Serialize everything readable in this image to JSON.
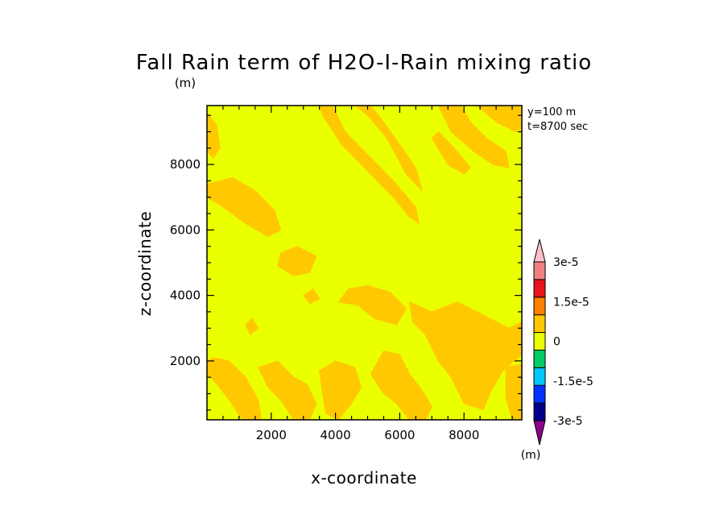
{
  "chart_data": {
    "type": "heatmap",
    "subtype": "filled-contour",
    "title": "Fall Rain term of H2O-I-Rain mixing ratio",
    "title_unit": "(m)",
    "xlabel": "x-coordinate",
    "ylabel": "z-coordinate",
    "xlim": [
      0,
      9800
    ],
    "ylim": [
      200,
      9800
    ],
    "x_ticks": [
      2000,
      4000,
      6000,
      8000
    ],
    "y_ticks": [
      2000,
      4000,
      6000,
      8000
    ],
    "x_minor_step": 500,
    "y_minor_step": 500,
    "annotations": [
      "y=100 m",
      "t=8700 sec"
    ],
    "background_level": 0,
    "background_color": "#eaff00",
    "patch_color": "#ffc800",
    "patch_level_range": [
      0,
      7.5e-06
    ],
    "patches": [
      [
        [
          0,
          9600
        ],
        [
          300,
          9200
        ],
        [
          400,
          8500
        ],
        [
          200,
          8200
        ],
        [
          0,
          8400
        ]
      ],
      [
        [
          0,
          7400
        ],
        [
          800,
          7600
        ],
        [
          1500,
          7200
        ],
        [
          2100,
          6600
        ],
        [
          2300,
          6000
        ],
        [
          1900,
          5800
        ],
        [
          1200,
          6200
        ],
        [
          500,
          6700
        ],
        [
          0,
          7000
        ]
      ],
      [
        [
          3500,
          9800
        ],
        [
          3600,
          9500
        ],
        [
          4200,
          8600
        ],
        [
          5000,
          7800
        ],
        [
          5800,
          7000
        ],
        [
          6300,
          6400
        ],
        [
          6600,
          6200
        ],
        [
          6500,
          6700
        ],
        [
          5800,
          7500
        ],
        [
          5000,
          8300
        ],
        [
          4300,
          9000
        ],
        [
          3900,
          9800
        ]
      ],
      [
        [
          4600,
          9800
        ],
        [
          5000,
          9500
        ],
        [
          5600,
          8800
        ],
        [
          6200,
          7700
        ],
        [
          6700,
          7200
        ],
        [
          6500,
          7900
        ],
        [
          6000,
          8600
        ],
        [
          5500,
          9300
        ],
        [
          5100,
          9800
        ]
      ],
      [
        [
          7200,
          9800
        ],
        [
          7600,
          9000
        ],
        [
          8300,
          8400
        ],
        [
          8900,
          8000
        ],
        [
          9400,
          7900
        ],
        [
          9300,
          8400
        ],
        [
          8700,
          8800
        ],
        [
          8200,
          9300
        ],
        [
          7900,
          9800
        ]
      ],
      [
        [
          8400,
          9800
        ],
        [
          9000,
          9300
        ],
        [
          9600,
          9000
        ],
        [
          9800,
          9100
        ],
        [
          9800,
          9800
        ]
      ],
      [
        [
          7000,
          8800
        ],
        [
          7500,
          8000
        ],
        [
          8000,
          7700
        ],
        [
          8200,
          7900
        ],
        [
          7700,
          8500
        ],
        [
          7200,
          9000
        ]
      ],
      [
        [
          2300,
          5300
        ],
        [
          2800,
          5500
        ],
        [
          3400,
          5200
        ],
        [
          3200,
          4700
        ],
        [
          2700,
          4600
        ],
        [
          2200,
          4900
        ]
      ],
      [
        [
          4100,
          3800
        ],
        [
          4700,
          3700
        ],
        [
          5200,
          3300
        ],
        [
          5900,
          3100
        ],
        [
          6200,
          3600
        ],
        [
          5700,
          4100
        ],
        [
          5000,
          4300
        ],
        [
          4400,
          4200
        ]
      ],
      [
        [
          6300,
          3800
        ],
        [
          7000,
          3500
        ],
        [
          7800,
          3800
        ],
        [
          8600,
          3400
        ],
        [
          9400,
          3000
        ],
        [
          9800,
          3200
        ],
        [
          9800,
          2200
        ],
        [
          9200,
          1700
        ],
        [
          8800,
          1000
        ],
        [
          8600,
          500
        ],
        [
          8000,
          700
        ],
        [
          7600,
          1500
        ],
        [
          7200,
          2000
        ],
        [
          6800,
          2800
        ],
        [
          6400,
          3200
        ]
      ],
      [
        [
          5100,
          1600
        ],
        [
          5500,
          2300
        ],
        [
          6000,
          2200
        ],
        [
          6300,
          1600
        ],
        [
          6700,
          1100
        ],
        [
          7000,
          600
        ],
        [
          6800,
          200
        ],
        [
          6300,
          200
        ],
        [
          5900,
          700
        ],
        [
          5500,
          1000
        ]
      ],
      [
        [
          200,
          2100
        ],
        [
          700,
          2000
        ],
        [
          1200,
          1500
        ],
        [
          1600,
          800
        ],
        [
          1700,
          200
        ],
        [
          1100,
          200
        ],
        [
          700,
          800
        ],
        [
          300,
          1300
        ],
        [
          0,
          1600
        ],
        [
          0,
          2000
        ]
      ],
      [
        [
          1600,
          1800
        ],
        [
          2200,
          2000
        ],
        [
          2700,
          1500
        ],
        [
          3100,
          1300
        ],
        [
          3400,
          700
        ],
        [
          3200,
          200
        ],
        [
          2700,
          200
        ],
        [
          2300,
          800
        ],
        [
          1900,
          1200
        ]
      ],
      [
        [
          3500,
          1700
        ],
        [
          4000,
          2000
        ],
        [
          4600,
          1800
        ],
        [
          4800,
          1200
        ],
        [
          4500,
          700
        ],
        [
          4100,
          200
        ],
        [
          3700,
          400
        ],
        [
          3600,
          1000
        ]
      ],
      [
        [
          9300,
          1800
        ],
        [
          9800,
          1900
        ],
        [
          9800,
          200
        ],
        [
          9500,
          200
        ],
        [
          9300,
          900
        ]
      ],
      [
        [
          1200,
          3100
        ],
        [
          1400,
          3300
        ],
        [
          1600,
          3000
        ],
        [
          1350,
          2800
        ]
      ],
      [
        [
          3000,
          4000
        ],
        [
          3300,
          4200
        ],
        [
          3500,
          3900
        ],
        [
          3200,
          3750
        ]
      ]
    ],
    "colorbar": {
      "levels": [
        -3e-05,
        -2.25e-05,
        -1.5e-05,
        -7.5e-06,
        0,
        7.5e-06,
        1.5e-05,
        2.25e-05,
        3e-05
      ],
      "tick_labels": [
        "3e-5",
        "1.5e-5",
        "0",
        "-1.5e-5",
        "-3e-5"
      ],
      "tick_values": [
        3e-05,
        1.5e-05,
        0,
        -1.5e-05,
        -3e-05
      ],
      "unit": "(m)",
      "colors_bottom_to_top": [
        "#8b008b",
        "#00008b",
        "#0033ff",
        "#00c8ff",
        "#00cc66",
        "#eaff00",
        "#ffc800",
        "#ff7f00",
        "#e8131b",
        "#f08080",
        "#ffc0cb"
      ],
      "extend": "both"
    }
  }
}
